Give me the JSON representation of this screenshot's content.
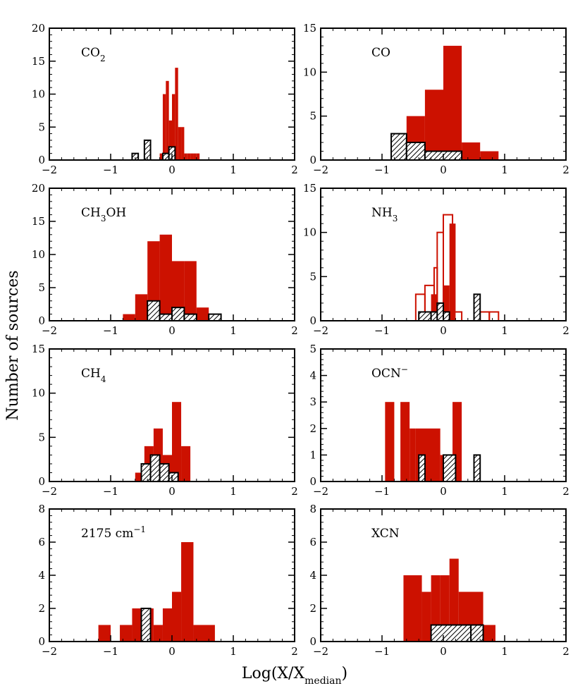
{
  "figure": {
    "xlabel": "Log(X/X",
    "xlabel_sub": "median",
    "xlabel_close": ")",
    "ylabel": "Number of sources"
  },
  "colors": {
    "filled": "#cc1100",
    "hatch": "#000000"
  },
  "chart_data": [
    {
      "type": "bar",
      "id": "co2",
      "label": "CO",
      "label_sub": "2",
      "label_tail": "",
      "xlim": [
        -2,
        2
      ],
      "ylim": [
        0,
        20
      ],
      "xticks": [
        -2,
        -1,
        0,
        1,
        2
      ],
      "yticks": [
        0,
        5,
        10,
        15,
        20
      ],
      "xtick_labels": [
        "−2",
        "−1",
        "0",
        "1",
        "2"
      ],
      "ytick_labels": [
        "0",
        "5",
        "10",
        "15",
        "20"
      ],
      "filled": {
        "edges": [
          -0.2,
          -0.15,
          -0.1,
          -0.05,
          0,
          0.05,
          0.1,
          0.15,
          0.2,
          0.25,
          0.3,
          0.35,
          0.4,
          0.45
        ],
        "counts": [
          1,
          10,
          12,
          6,
          10,
          14,
          5,
          5,
          1,
          1,
          1,
          1,
          1
        ]
      },
      "outline": null,
      "hatched": {
        "edges": [
          -0.65,
          -0.55,
          -0.45,
          -0.35,
          -0.25,
          -0.15,
          -0.05,
          0.05
        ],
        "counts": [
          1,
          0,
          3,
          0,
          0,
          1,
          2
        ]
      }
    },
    {
      "type": "bar",
      "id": "co",
      "label": "CO",
      "label_sub": "",
      "label_tail": "",
      "xlim": [
        -2,
        2
      ],
      "ylim": [
        0,
        15
      ],
      "xticks": [
        -2,
        -1,
        0,
        1,
        2
      ],
      "yticks": [
        0,
        5,
        10,
        15
      ],
      "xtick_labels": [
        "−2",
        "−1",
        "0",
        "1",
        "2"
      ],
      "ytick_labels": [
        "0",
        "5",
        "10",
        "15"
      ],
      "filled": {
        "edges": [
          -0.85,
          -0.6,
          -0.3,
          0,
          0.3,
          0.6,
          0.9
        ],
        "counts": [
          3,
          5,
          8,
          13,
          2,
          1
        ]
      },
      "outline": null,
      "hatched": {
        "edges": [
          -0.85,
          -0.6,
          -0.3,
          0.3
        ],
        "counts": [
          3,
          2,
          1
        ]
      }
    },
    {
      "type": "bar",
      "id": "ch3oh",
      "label": "CH",
      "label_sub": "3",
      "label_tail": "OH",
      "xlim": [
        -2,
        2
      ],
      "ylim": [
        0,
        20
      ],
      "xticks": [
        -2,
        -1,
        0,
        1,
        2
      ],
      "yticks": [
        0,
        5,
        10,
        15,
        20
      ],
      "xtick_labels": [
        "−2",
        "−1",
        "0",
        "1",
        "2"
      ],
      "ytick_labels": [
        "0",
        "5",
        "10",
        "15",
        "20"
      ],
      "filled": {
        "edges": [
          -0.8,
          -0.6,
          -0.4,
          -0.2,
          0,
          0.2,
          0.4,
          0.6,
          0.8
        ],
        "counts": [
          1,
          4,
          12,
          13,
          9,
          9,
          2,
          1
        ]
      },
      "outline": null,
      "hatched": {
        "edges": [
          -0.4,
          -0.2,
          0,
          0.2,
          0.4,
          0.6,
          0.8
        ],
        "counts": [
          3,
          1,
          2,
          1,
          0,
          1
        ]
      }
    },
    {
      "type": "bar",
      "id": "nh3",
      "label": "NH",
      "label_sub": "3",
      "label_tail": "",
      "xlim": [
        -2,
        2
      ],
      "ylim": [
        0,
        15
      ],
      "xticks": [
        -2,
        -1,
        0,
        1,
        2
      ],
      "yticks": [
        0,
        5,
        10,
        15
      ],
      "xtick_labels": [
        "−2",
        "−1",
        "0",
        "1",
        "2"
      ],
      "ytick_labels": [
        "0",
        "5",
        "10",
        "15"
      ],
      "filled": {
        "edges": [
          -0.4,
          -0.3,
          -0.2,
          -0.1,
          0,
          0.1,
          0.2
        ],
        "counts": [
          1,
          1,
          3,
          2,
          4,
          11
        ]
      },
      "outline": {
        "edges": [
          -0.45,
          -0.3,
          -0.15,
          -0.1,
          0,
          0.15,
          0.3,
          0.45,
          0.6,
          0.75,
          0.9
        ],
        "counts": [
          3,
          4,
          6,
          10,
          12,
          1,
          0,
          0,
          1,
          1
        ]
      },
      "hatched": {
        "edges": [
          -0.4,
          -0.2,
          -0.1,
          0,
          0.1,
          0.4,
          0.5,
          0.6
        ],
        "counts": [
          1,
          1,
          2,
          1,
          0,
          0,
          3
        ]
      }
    },
    {
      "type": "bar",
      "id": "ch4",
      "label": "CH",
      "label_sub": "4",
      "label_tail": "",
      "xlim": [
        -2,
        2
      ],
      "ylim": [
        0,
        15
      ],
      "xticks": [
        -2,
        -1,
        0,
        1,
        2
      ],
      "yticks": [
        0,
        5,
        10,
        15
      ],
      "xtick_labels": [
        "−2",
        "−1",
        "0",
        "1",
        "2"
      ],
      "ytick_labels": [
        "0",
        "5",
        "10",
        "15"
      ],
      "filled": {
        "edges": [
          -0.6,
          -0.45,
          -0.3,
          -0.15,
          0,
          0.15,
          0.3
        ],
        "counts": [
          1,
          4,
          6,
          3,
          9,
          4
        ]
      },
      "outline": null,
      "hatched": {
        "edges": [
          -0.5,
          -0.35,
          -0.2,
          -0.05,
          0.1
        ],
        "counts": [
          2,
          3,
          2,
          1
        ]
      }
    },
    {
      "type": "bar",
      "id": "ocn",
      "label": "OCN",
      "label_sub": "",
      "label_tail": "",
      "label_sup": "−",
      "xlim": [
        -2,
        2
      ],
      "ylim": [
        0,
        5
      ],
      "xticks": [
        -2,
        -1,
        0,
        1,
        2
      ],
      "yticks": [
        0,
        1,
        2,
        3,
        4,
        5
      ],
      "xtick_labels": [
        "−2",
        "−1",
        "0",
        "1",
        "2"
      ],
      "ytick_labels": [
        "0",
        "1",
        "2",
        "3",
        "4",
        "5"
      ],
      "filled": {
        "edges": [
          -0.95,
          -0.8,
          -0.7,
          -0.55,
          -0.45,
          -0.05,
          0.15,
          0.3
        ],
        "counts": [
          3,
          0,
          3,
          2,
          2,
          1,
          3
        ]
      },
      "outline": null,
      "hatched": {
        "edges": [
          -0.4,
          -0.3,
          -0.2,
          0,
          0.2,
          0.5,
          0.6
        ],
        "counts": [
          1,
          0,
          0,
          1,
          0,
          1
        ]
      }
    },
    {
      "type": "bar",
      "id": "2175",
      "label": "2175 cm",
      "label_sub": "",
      "label_tail": "",
      "label_sup": "−1",
      "xlim": [
        -2,
        2
      ],
      "ylim": [
        0,
        8
      ],
      "xticks": [
        -2,
        -1,
        0,
        1,
        2
      ],
      "yticks": [
        0,
        2,
        4,
        6,
        8
      ],
      "xtick_labels": [
        "−2",
        "−1",
        "0",
        "1",
        "2"
      ],
      "ytick_labels": [
        "0",
        "2",
        "4",
        "6",
        "8"
      ],
      "filled": {
        "edges": [
          -1.2,
          -1,
          -0.85,
          -0.65,
          -0.5,
          -0.3,
          -0.15,
          0,
          0.15,
          0.35,
          0.7
        ],
        "counts": [
          1,
          0,
          1,
          2,
          2,
          1,
          2,
          3,
          6,
          1
        ]
      },
      "outline": null,
      "hatched": {
        "edges": [
          -0.5,
          -0.35
        ],
        "counts": [
          2
        ]
      }
    },
    {
      "type": "bar",
      "id": "xcn",
      "label": "XCN",
      "label_sub": "",
      "label_tail": "",
      "xlim": [
        -2,
        2
      ],
      "ylim": [
        0,
        8
      ],
      "xticks": [
        -2,
        -1,
        0,
        1,
        2
      ],
      "yticks": [
        0,
        2,
        4,
        6,
        8
      ],
      "xtick_labels": [
        "−2",
        "−1",
        "0",
        "1",
        "2"
      ],
      "ytick_labels": [
        "0",
        "2",
        "4",
        "6",
        "8"
      ],
      "filled": {
        "edges": [
          -0.65,
          -0.35,
          -0.2,
          -0.05,
          0.1,
          0.25,
          0.65,
          0.85
        ],
        "counts": [
          4,
          3,
          4,
          4,
          5,
          3,
          1
        ]
      },
      "outline": null,
      "hatched": {
        "edges": [
          -0.2,
          0.45,
          0.65
        ],
        "counts": [
          1,
          1
        ]
      }
    }
  ]
}
